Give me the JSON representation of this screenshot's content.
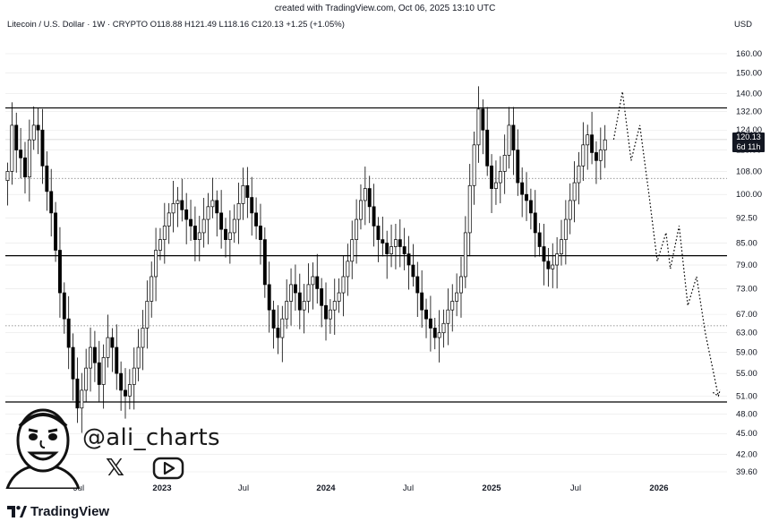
{
  "header": {
    "credit": "created with TradingView.com, Oct 06, 2025 13:10 UTC",
    "symbol_line": "Litecoin / U.S. Dollar · 1W · CRYPTO  O118.88  H121.49  L118.16  C120.13  +1.25 (+1.05%)",
    "currency": "USD"
  },
  "price_tag": {
    "price": "120.13",
    "countdown": "6d 11h"
  },
  "watermark": {
    "handle": "@ali_charts",
    "x_icon": "𝕏",
    "brand": "TradingView"
  },
  "colors": {
    "candle": "#000000",
    "up_fill": "#ffffff",
    "grid": "#e6e6e6",
    "label_bg": "#131722"
  },
  "chart_data": {
    "type": "candlestick",
    "title": "Litecoin / U.S. Dollar · 1W · CRYPTO",
    "scale": "log",
    "ylim": [
      39.6,
      160
    ],
    "y_ticks": [
      "160.00",
      "150.00",
      "140.00",
      "132.00",
      "124.00",
      "116.00",
      "108.00",
      "100.00",
      "92.50",
      "85.00",
      "79.00",
      "73.00",
      "67.00",
      "63.00",
      "59.00",
      "55.00",
      "51.00",
      "48.00",
      "45.00",
      "42.00",
      "39.60"
    ],
    "x_ticks": [
      "Jul",
      "2023",
      "Jul",
      "2024",
      "Jul",
      "2025",
      "Jul",
      "2026"
    ],
    "last_price": 120.13,
    "ohlc_last": {
      "open": 118.88,
      "high": 121.49,
      "low": 118.16,
      "close": 120.13,
      "change": 1.25,
      "change_pct": 1.05
    },
    "horizontal_levels": [
      {
        "price": 133.5,
        "style": "solid"
      },
      {
        "price": 120.13,
        "style": "solid-thin"
      },
      {
        "price": 105.5,
        "style": "dotted"
      },
      {
        "price": 81.5,
        "style": "solid"
      },
      {
        "price": 64.5,
        "style": "dotted"
      },
      {
        "price": 50.0,
        "style": "solid"
      }
    ],
    "weekly_closes": [
      108,
      126,
      116,
      113,
      106,
      120,
      126,
      124,
      110,
      101,
      94,
      83,
      72,
      66,
      60,
      54,
      49,
      52,
      56,
      60,
      57,
      53,
      58,
      62,
      60,
      55,
      52,
      51,
      53,
      56,
      60,
      64,
      70,
      76,
      83,
      86,
      90,
      94,
      97,
      98,
      95,
      92,
      90,
      86,
      88,
      92,
      96,
      98,
      94,
      89,
      86,
      88,
      92,
      97,
      103,
      99,
      94,
      90,
      86,
      74,
      68,
      64,
      62,
      66,
      70,
      74,
      72,
      68,
      70,
      74,
      76,
      73,
      69,
      66,
      68,
      70,
      72,
      76,
      80,
      86,
      92,
      98,
      102,
      96,
      90,
      86,
      85,
      82,
      84,
      86,
      84,
      82,
      79,
      76,
      72,
      68,
      66,
      64,
      62,
      63,
      65,
      68,
      70,
      72,
      76,
      88,
      103,
      118,
      133,
      124,
      110,
      102,
      104,
      108,
      114,
      126,
      116,
      104,
      100,
      98,
      94,
      88,
      84,
      80,
      78,
      79,
      82,
      86,
      92,
      98,
      104,
      110,
      118,
      122,
      115,
      112,
      116,
      120
    ],
    "projection": [
      {
        "week": 139,
        "price": 120.13
      },
      {
        "week": 141,
        "price": 141
      },
      {
        "week": 143,
        "price": 112
      },
      {
        "week": 145,
        "price": 126
      },
      {
        "week": 147,
        "price": 101
      },
      {
        "week": 149,
        "price": 80
      },
      {
        "week": 151,
        "price": 88
      },
      {
        "week": 152,
        "price": 78
      },
      {
        "week": 154,
        "price": 90
      },
      {
        "week": 156,
        "price": 69
      },
      {
        "week": 158,
        "price": 76
      },
      {
        "week": 160,
        "price": 63
      },
      {
        "week": 163,
        "price": 51
      }
    ]
  }
}
